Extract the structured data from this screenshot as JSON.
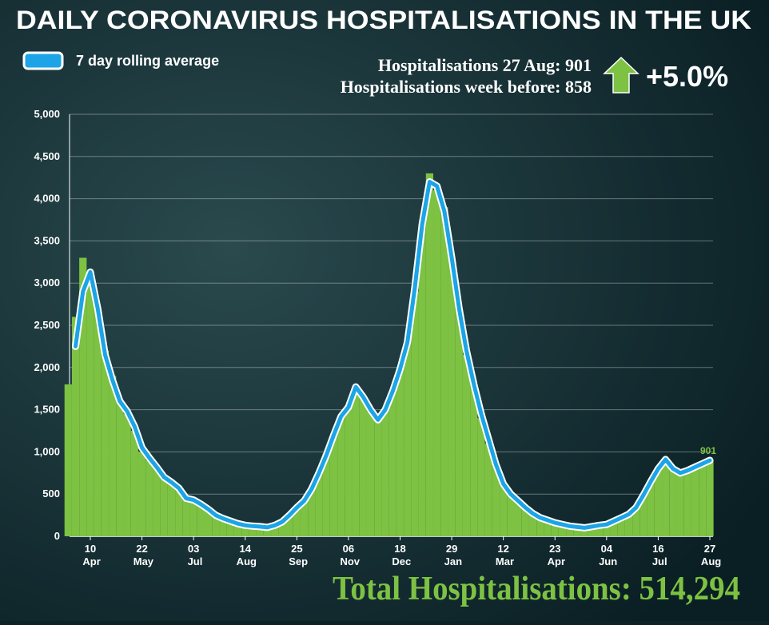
{
  "chart_data": {
    "type": "bar-line",
    "title": "DAILY CORONAVIRUS HOSPITALISATIONS IN THE UK",
    "annotations": {
      "latest": "Hospitalisations 27 Aug: 901",
      "week_before": "Hospitalisations week before: 858",
      "change": "+5.0%",
      "total": "Total Hospitalisations: 514,294"
    },
    "categories": [
      null,
      null,
      null,
      "10 Apr",
      null,
      null,
      null,
      null,
      null,
      null,
      "22 May",
      null,
      null,
      null,
      null,
      null,
      null,
      "03 Jul",
      null,
      null,
      null,
      null,
      null,
      null,
      "14 Aug",
      null,
      null,
      null,
      null,
      null,
      null,
      "25 Sep",
      null,
      null,
      null,
      null,
      null,
      null,
      "06 Nov",
      null,
      null,
      null,
      null,
      null,
      null,
      "18 Dec",
      null,
      null,
      null,
      null,
      null,
      null,
      "29 Jan",
      null,
      null,
      null,
      null,
      null,
      null,
      "12 Mar",
      null,
      null,
      null,
      null,
      null,
      null,
      "23 Apr",
      null,
      null,
      null,
      null,
      null,
      null,
      "04 Jun",
      null,
      null,
      null,
      null,
      null,
      null,
      "16 Jul",
      null,
      null,
      null,
      null,
      null,
      null,
      "27 Aug"
    ],
    "series": [
      {
        "color": "#7dc242",
        "values": [
          1800,
          2600,
          3300,
          3100,
          2700,
          2200,
          1900,
          1600,
          1450,
          1250,
          1000,
          900,
          820,
          700,
          640,
          560,
          470,
          430,
          370,
          310,
          250,
          210,
          180,
          150,
          130,
          120,
          110,
          100,
          130,
          180,
          260,
          330,
          430,
          560,
          760,
          980,
          1200,
          1420,
          1550,
          1750,
          1650,
          1480,
          1380,
          1500,
          1700,
          2000,
          2300,
          2900,
          3700,
          4300,
          4100,
          3900,
          3300,
          2700,
          2150,
          1800,
          1400,
          1100,
          850,
          600,
          500,
          420,
          340,
          260,
          220,
          190,
          160,
          140,
          120,
          110,
          100,
          110,
          130,
          140,
          180,
          220,
          260,
          350,
          500,
          640,
          800,
          900,
          800,
          740,
          780,
          820,
          860,
          901
        ]
      },
      {
        "name": "7 day rolling average",
        "color": "#1ca4e6",
        "axis": "y",
        "values": [
          null,
          2250,
          2900,
          3130,
          2700,
          2150,
          1850,
          1600,
          1480,
          1300,
          1050,
          930,
          820,
          700,
          640,
          570,
          450,
          430,
          380,
          320,
          250,
          210,
          180,
          150,
          130,
          120,
          115,
          105,
          130,
          170,
          250,
          340,
          420,
          560,
          750,
          960,
          1200,
          1420,
          1530,
          1770,
          1650,
          1500,
          1380,
          1500,
          1720,
          1980,
          2300,
          2950,
          3700,
          4200,
          4150,
          3850,
          3300,
          2700,
          2200,
          1800,
          1450,
          1150,
          850,
          620,
          500,
          420,
          340,
          270,
          220,
          190,
          160,
          140,
          120,
          110,
          100,
          115,
          130,
          140,
          180,
          220,
          260,
          340,
          490,
          650,
          800,
          910,
          800,
          750,
          780,
          820,
          860,
          900
        ]
      }
    ],
    "ylim": [
      0,
      5000
    ],
    "yticks": [
      0,
      500,
      {
        "value": 1000,
        "label": "1,000"
      },
      {
        "value": 1500,
        "label": "1,500"
      },
      {
        "value": 2000,
        "label": "2,000"
      },
      {
        "value": 2500,
        "label": "2,500"
      },
      {
        "value": 3000,
        "label": "3,000"
      },
      {
        "value": 3500,
        "label": "3,500"
      },
      {
        "value": 4000,
        "label": "4,000"
      },
      {
        "value": 4500,
        "label": "4,500"
      },
      {
        "value": 5000,
        "label": "5,000"
      }
    ],
    "grid": true,
    "legend": "top-left"
  }
}
